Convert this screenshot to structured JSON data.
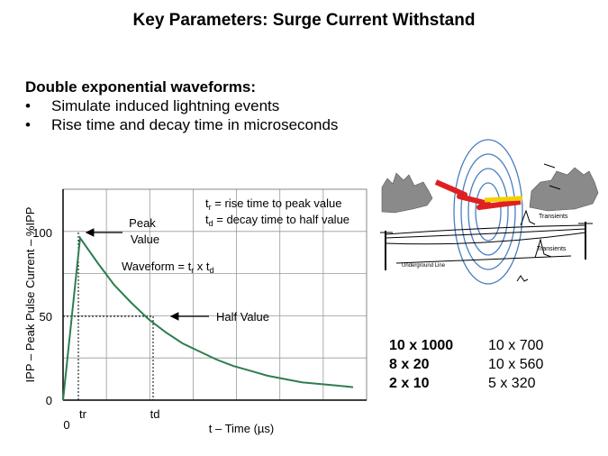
{
  "slide": {
    "title": "Key Parameters: Surge Current Withstand",
    "heading": "Double exponential  waveforms:",
    "bullets": [
      "Simulate induced lightning events",
      "Rise time and decay time in microseconds"
    ]
  },
  "chart_data": {
    "type": "line",
    "ylabel": "IPP – Peak Pulse Current – %IPP",
    "xlabel": "t – Time (µs)",
    "yticks": [
      "100",
      "50",
      "0"
    ],
    "xticks": [
      "0",
      "tr",
      "td"
    ],
    "ylim": [
      0,
      130
    ],
    "grid": true,
    "series": [
      {
        "x": [
          0,
          0.5,
          1,
          1.5,
          2,
          2.5,
          3,
          3.5,
          4,
          4.5,
          5,
          5.5,
          6,
          6.5,
          7,
          7.5,
          8,
          8.5
        ],
        "values": [
          0,
          100,
          85,
          71,
          60,
          50,
          42,
          35,
          30,
          25,
          21,
          18,
          15,
          13,
          11,
          10,
          9,
          8
        ]
      }
    ],
    "annotations": {
      "legend_tr": "tr = rise time to peak value",
      "legend_td": "td = decay time to half value",
      "peak": "Peak Value",
      "waveform": "Waveform = tr x td",
      "half": "Half Value"
    }
  },
  "illustration": {
    "transients1": "Transients",
    "transients2": "Transients",
    "underground": "Underground Line"
  },
  "waveform_table": [
    {
      "left": "10 x 1000",
      "right": "10 x 700"
    },
    {
      "left": "8 x 20",
      "right": "10 x 560"
    },
    {
      "left": "2 x 10",
      "right": "5 x 320"
    }
  ],
  "colors": {
    "curve": "#2e7d4f",
    "bolt_red": "#e02020",
    "bolt_yellow": "#f5d000",
    "rings": "#4a7fc0"
  }
}
